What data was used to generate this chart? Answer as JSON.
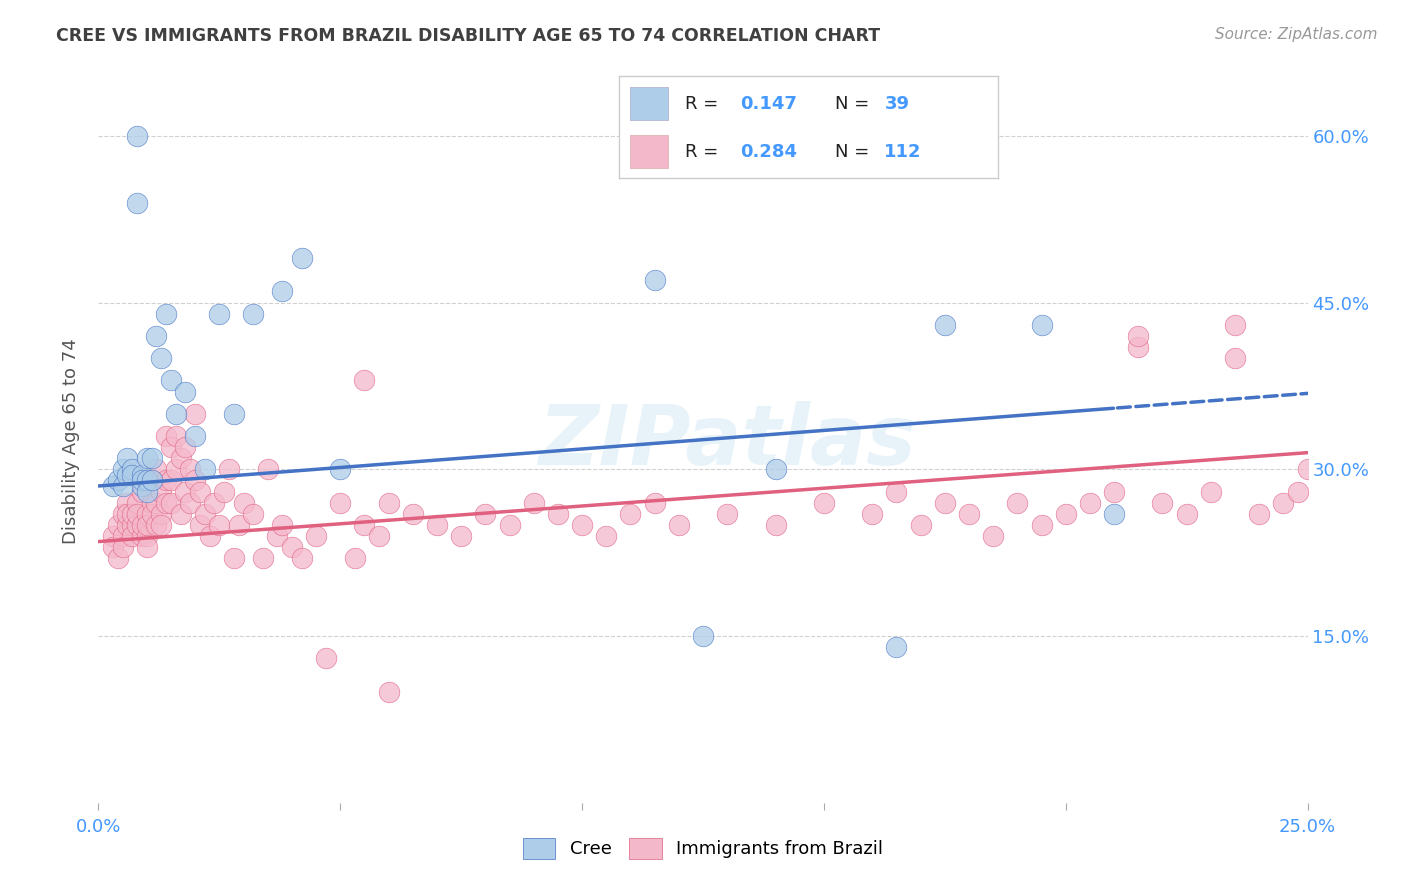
{
  "title": "CREE VS IMMIGRANTS FROM BRAZIL DISABILITY AGE 65 TO 74 CORRELATION CHART",
  "source": "Source: ZipAtlas.com",
  "ylabel": "Disability Age 65 to 74",
  "x_min": 0.0,
  "x_max": 0.25,
  "y_min": 0.0,
  "y_max": 0.65,
  "color_blue": "#aecde8",
  "color_pink": "#f4b8cb",
  "color_blue_line": "#4472c4",
  "color_pink_line": "#e06080",
  "title_color": "#404040",
  "axis_label_color": "#555555",
  "grid_color": "#cccccc",
  "watermark_color": "#d0e8f5",
  "tick_color": "#4499ff",
  "cree_x": [
    0.003,
    0.004,
    0.005,
    0.005,
    0.006,
    0.006,
    0.007,
    0.007,
    0.008,
    0.008,
    0.009,
    0.009,
    0.009,
    0.01,
    0.01,
    0.01,
    0.011,
    0.011,
    0.012,
    0.013,
    0.014,
    0.015,
    0.016,
    0.018,
    0.02,
    0.022,
    0.025,
    0.028,
    0.032,
    0.038,
    0.042,
    0.05,
    0.115,
    0.125,
    0.14,
    0.165,
    0.175,
    0.195,
    0.21
  ],
  "cree_y": [
    0.285,
    0.29,
    0.285,
    0.3,
    0.295,
    0.31,
    0.3,
    0.295,
    0.6,
    0.54,
    0.285,
    0.295,
    0.29,
    0.29,
    0.31,
    0.28,
    0.29,
    0.31,
    0.42,
    0.4,
    0.44,
    0.38,
    0.35,
    0.37,
    0.33,
    0.3,
    0.44,
    0.35,
    0.44,
    0.46,
    0.49,
    0.3,
    0.47,
    0.15,
    0.3,
    0.14,
    0.43,
    0.43,
    0.26
  ],
  "brazil_x": [
    0.003,
    0.003,
    0.004,
    0.004,
    0.005,
    0.005,
    0.005,
    0.006,
    0.006,
    0.006,
    0.007,
    0.007,
    0.007,
    0.008,
    0.008,
    0.008,
    0.009,
    0.009,
    0.009,
    0.01,
    0.01,
    0.01,
    0.01,
    0.011,
    0.011,
    0.011,
    0.012,
    0.012,
    0.012,
    0.013,
    0.013,
    0.013,
    0.014,
    0.014,
    0.014,
    0.015,
    0.015,
    0.015,
    0.016,
    0.016,
    0.017,
    0.017,
    0.018,
    0.018,
    0.019,
    0.019,
    0.02,
    0.02,
    0.021,
    0.021,
    0.022,
    0.023,
    0.024,
    0.025,
    0.026,
    0.027,
    0.028,
    0.029,
    0.03,
    0.032,
    0.034,
    0.035,
    0.037,
    0.038,
    0.04,
    0.042,
    0.045,
    0.047,
    0.05,
    0.053,
    0.055,
    0.058,
    0.06,
    0.065,
    0.07,
    0.075,
    0.08,
    0.085,
    0.09,
    0.095,
    0.1,
    0.105,
    0.11,
    0.115,
    0.12,
    0.13,
    0.14,
    0.15,
    0.16,
    0.165,
    0.17,
    0.175,
    0.18,
    0.185,
    0.19,
    0.195,
    0.2,
    0.205,
    0.21,
    0.215,
    0.22,
    0.225,
    0.23,
    0.235,
    0.24,
    0.245,
    0.248,
    0.25,
    0.215,
    0.235,
    0.055,
    0.06
  ],
  "brazil_y": [
    0.24,
    0.23,
    0.25,
    0.22,
    0.26,
    0.24,
    0.23,
    0.27,
    0.25,
    0.26,
    0.25,
    0.24,
    0.26,
    0.25,
    0.27,
    0.26,
    0.24,
    0.28,
    0.25,
    0.24,
    0.26,
    0.23,
    0.25,
    0.27,
    0.26,
    0.29,
    0.25,
    0.27,
    0.3,
    0.26,
    0.28,
    0.25,
    0.27,
    0.29,
    0.33,
    0.27,
    0.29,
    0.32,
    0.3,
    0.33,
    0.26,
    0.31,
    0.28,
    0.32,
    0.3,
    0.27,
    0.29,
    0.35,
    0.25,
    0.28,
    0.26,
    0.24,
    0.27,
    0.25,
    0.28,
    0.3,
    0.22,
    0.25,
    0.27,
    0.26,
    0.22,
    0.3,
    0.24,
    0.25,
    0.23,
    0.22,
    0.24,
    0.13,
    0.27,
    0.22,
    0.25,
    0.24,
    0.27,
    0.26,
    0.25,
    0.24,
    0.26,
    0.25,
    0.27,
    0.26,
    0.25,
    0.24,
    0.26,
    0.27,
    0.25,
    0.26,
    0.25,
    0.27,
    0.26,
    0.28,
    0.25,
    0.27,
    0.26,
    0.24,
    0.27,
    0.25,
    0.26,
    0.27,
    0.28,
    0.41,
    0.27,
    0.26,
    0.28,
    0.4,
    0.26,
    0.27,
    0.28,
    0.3,
    0.42,
    0.43,
    0.38,
    0.1
  ]
}
